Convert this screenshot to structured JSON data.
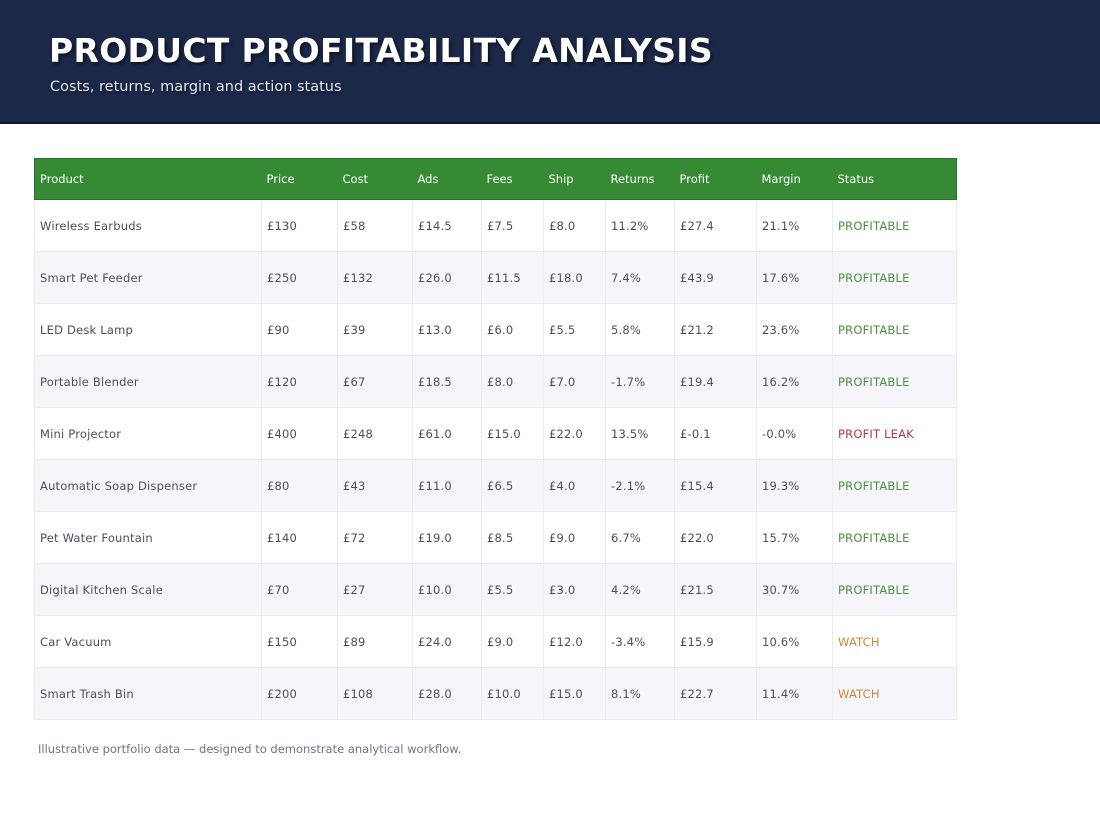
{
  "header": {
    "title": "PRODUCT PROFITABILITY ANALYSIS",
    "subtitle": "Costs, returns, margin and action status"
  },
  "table": {
    "columns": [
      "Product",
      "Price",
      "Cost",
      "Ads",
      "Fees",
      "Ship",
      "Returns",
      "Profit",
      "Margin",
      "Status"
    ],
    "rows": [
      [
        "Wireless Earbuds",
        "£130",
        "£58",
        "£14.5",
        "£7.5",
        "£8.0",
        "11.2%",
        "£27.4",
        "21.1%",
        "PROFITABLE"
      ],
      [
        "Smart Pet Feeder",
        "£250",
        "£132",
        "£26.0",
        "£11.5",
        "£18.0",
        "7.4%",
        "£43.9",
        "17.6%",
        "PROFITABLE"
      ],
      [
        "LED Desk Lamp",
        "£90",
        "£39",
        "£13.0",
        "£6.0",
        "£5.5",
        "5.8%",
        "£21.2",
        "23.6%",
        "PROFITABLE"
      ],
      [
        "Portable Blender",
        "£120",
        "£67",
        "£18.5",
        "£8.0",
        "£7.0",
        "-1.7%",
        "£19.4",
        "16.2%",
        "PROFITABLE"
      ],
      [
        "Mini Projector",
        "£400",
        "£248",
        "£61.0",
        "£15.0",
        "£22.0",
        "13.5%",
        "£-0.1",
        "-0.0%",
        "PROFIT LEAK"
      ],
      [
        "Automatic Soap Dispenser",
        "£80",
        "£43",
        "£11.0",
        "£6.5",
        "£4.0",
        "-2.1%",
        "£15.4",
        "19.3%",
        "PROFITABLE"
      ],
      [
        "Pet Water Fountain",
        "£140",
        "£72",
        "£19.0",
        "£8.5",
        "£9.0",
        "6.7%",
        "£22.0",
        "15.7%",
        "PROFITABLE"
      ],
      [
        "Digital Kitchen Scale",
        "£70",
        "£27",
        "£10.0",
        "£5.5",
        "£3.0",
        "4.2%",
        "£21.5",
        "30.7%",
        "PROFITABLE"
      ],
      [
        "Car Vacuum",
        "£150",
        "£89",
        "£24.0",
        "£9.0",
        "£12.0",
        "-3.4%",
        "£15.9",
        "10.6%",
        "WATCH"
      ],
      [
        "Smart Trash Bin",
        "£200",
        "£108",
        "£28.0",
        "£10.0",
        "£15.0",
        "8.1%",
        "£22.7",
        "11.4%",
        "WATCH"
      ]
    ]
  },
  "status_colors": {
    "PROFITABLE": "#4e8f43",
    "PROFIT LEAK": "#b03a48",
    "WATCH": "#c98b3a"
  },
  "colors": {
    "header_bg": "#1b2848",
    "table_header_bg": "#368a34"
  },
  "footer": {
    "note": "Illustrative portfolio data — designed to demonstrate analytical workflow."
  }
}
